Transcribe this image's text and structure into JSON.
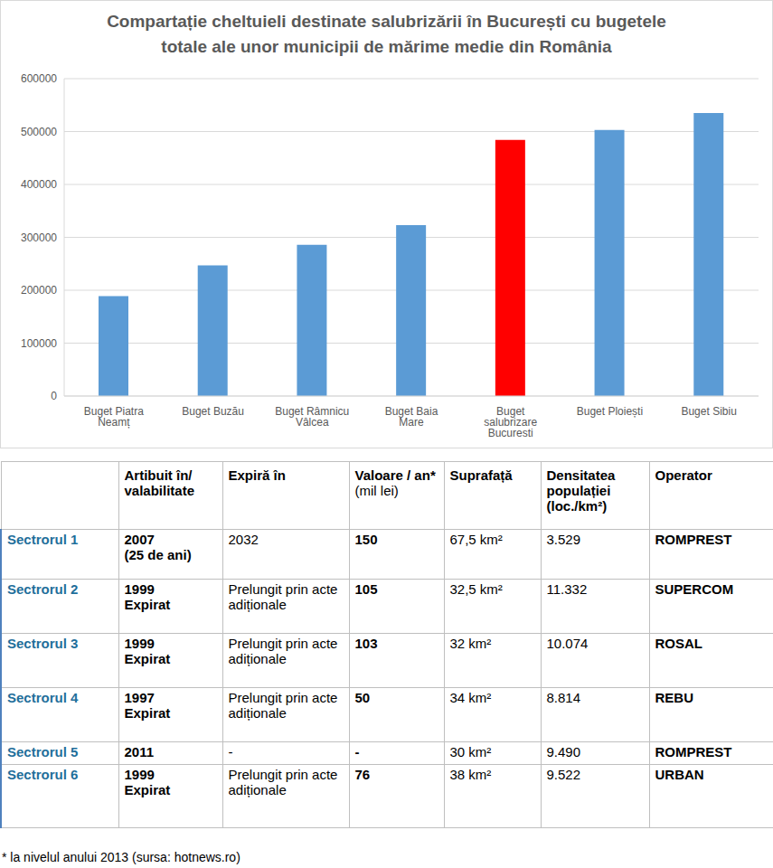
{
  "chart_data": {
    "type": "bar",
    "title": "Compartație cheltuieli destinate salubrizării în București cu bugetele totale ale unor municipii de mărime medie din România",
    "categories": [
      "Buget Piatra Neamț",
      "Buget Buzău",
      "Buget Râmnicu Vâlcea",
      "Buget Baia Mare",
      "Buget salubrizare București",
      "Buget Ploiești",
      "Buget Sibiu"
    ],
    "values": [
      189000,
      247000,
      286000,
      323000,
      484000,
      503000,
      535000
    ],
    "colors": [
      "#5b9bd5",
      "#5b9bd5",
      "#5b9bd5",
      "#5b9bd5",
      "#ff0000",
      "#5b9bd5",
      "#5b9bd5"
    ],
    "ylim": [
      0,
      600000
    ],
    "yticks": [
      0,
      100000,
      200000,
      300000,
      400000,
      500000,
      600000
    ],
    "grid": true
  },
  "table": {
    "header": [
      "",
      "Artibuit în/ valabilitate",
      "Expiră în",
      [
        "Valoare / an*",
        "(mil lei)"
      ],
      "Suprafață",
      "Densitatea populației (loc./km²)",
      "Operator"
    ],
    "rows": [
      {
        "label": "Sectrorul 1",
        "cells": [
          [
            "2007",
            "(25 de ani)"
          ],
          "2032",
          "150",
          "67,5 km²",
          "3.529",
          "ROMPREST"
        ]
      },
      {
        "label": "Sectrorul 2",
        "cells": [
          [
            "1999",
            "Expirat"
          ],
          "Prelungit prin acte adiționale",
          "105",
          "32,5 km²",
          "11.332",
          "SUPERCOM"
        ]
      },
      {
        "label": "Sectrorul 3",
        "cells": [
          [
            "1999",
            "Expirat"
          ],
          "Prelungit prin acte adiționale",
          "103",
          "32 km²",
          "10.074",
          "ROSAL"
        ]
      },
      {
        "label": "Sectrorul 4",
        "cells": [
          [
            "1997",
            "Expirat"
          ],
          "Prelungit prin acte adiționale",
          "50",
          "34 km²",
          "8.814",
          "REBU"
        ]
      },
      {
        "label": "Sectrorul 5",
        "cells": [
          "2011",
          "-",
          "-",
          "30 km²",
          "9.490",
          "ROMPREST"
        ]
      },
      {
        "label": "Sectrorul 6",
        "cells": [
          [
            "1999",
            "Expirat"
          ],
          "Prelungit prin acte adiționale",
          "76",
          "38 km²",
          "9.522",
          "URBAN"
        ]
      }
    ]
  },
  "footnote": "* la nivelul anului 2013 (sursa: hotnews.ro)"
}
